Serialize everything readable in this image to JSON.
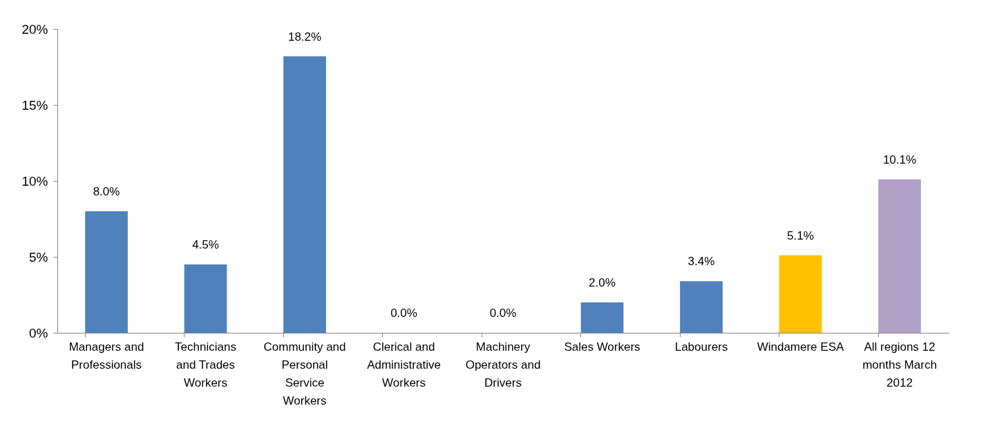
{
  "chart_data": {
    "type": "bar",
    "categories": [
      "Managers and Professionals",
      "Technicians and Trades Workers",
      "Community and Personal Service Workers",
      "Clerical and Administrative Workers",
      "Machinery Operators and Drivers",
      "Sales Workers",
      "Labourers",
      "Windamere ESA",
      "All regions 12 months March 2012"
    ],
    "values": [
      8.0,
      4.5,
      18.2,
      0.0,
      0.0,
      2.0,
      3.4,
      5.1,
      10.1
    ],
    "colors": [
      "#4f81bd",
      "#4f81bd",
      "#4f81bd",
      "#4f81bd",
      "#4f81bd",
      "#4f81bd",
      "#4f81bd",
      "#ffc000",
      "#b2a1c7"
    ],
    "value_labels": [
      "8.0%",
      "4.5%",
      "18.2%",
      "0.0%",
      "0.0%",
      "2.0%",
      "3.4%",
      "5.1%",
      "10.1%"
    ],
    "ylim": [
      0,
      20
    ],
    "yticks": [
      {
        "value": 0,
        "label": "0%"
      },
      {
        "value": 5,
        "label": "5%"
      },
      {
        "value": 10,
        "label": "10%"
      },
      {
        "value": 15,
        "label": "15%"
      },
      {
        "value": 20,
        "label": "20%"
      }
    ],
    "grid": false
  }
}
